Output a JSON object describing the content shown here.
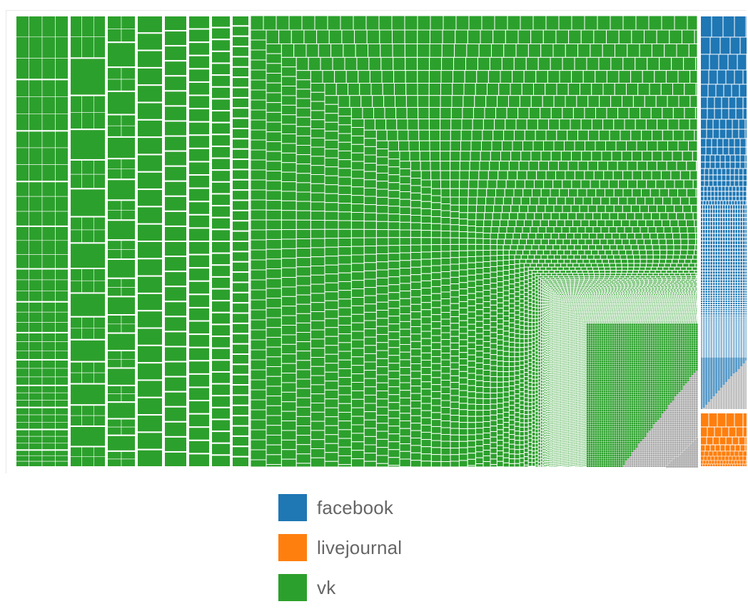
{
  "chart_data": {
    "type": "treemap",
    "title": "",
    "legend_position": "bottom",
    "series": [
      {
        "name": "vk",
        "color": "#2ca02c",
        "share": 0.929
      },
      {
        "name": "facebook",
        "color": "#1f77b4",
        "share": 0.05
      },
      {
        "name": "livejournal",
        "color": "#ff7f0e",
        "share": 0.021
      }
    ],
    "other_color": "#aaaaaa"
  },
  "legend": {
    "items": [
      {
        "label": "facebook",
        "color": "#1f77b4"
      },
      {
        "label": "livejournal",
        "color": "#ff7f0e"
      },
      {
        "label": "vk",
        "color": "#2ca02c"
      }
    ]
  }
}
